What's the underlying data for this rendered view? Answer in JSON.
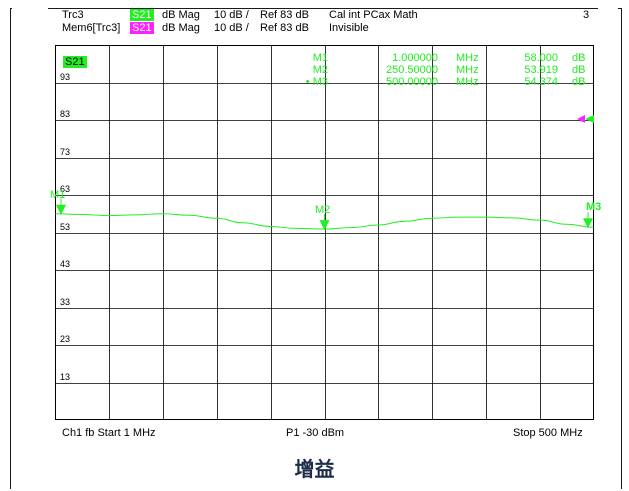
{
  "header": {
    "row1": {
      "trace": "Trc3",
      "param": "S21",
      "format": "dB Mag",
      "scale": "10 dB /",
      "ref": "Ref 83 dB",
      "cal": "Cal int PCax Math",
      "window": "3"
    },
    "row2": {
      "trace": "Mem6[Trc3]",
      "param": "S21",
      "format": "dB Mag",
      "scale": "10 dB /",
      "ref": "Ref 83 dB",
      "status": "Invisible"
    }
  },
  "plot": {
    "param_badge": "S21",
    "markers": [
      {
        "name": "M1",
        "freq": "1.000000",
        "freq_unit": "MHz",
        "value": "58.000",
        "value_unit": "dB",
        "active": false
      },
      {
        "name": "M2",
        "freq": "250.50000",
        "freq_unit": "MHz",
        "value": "53.919",
        "value_unit": "dB",
        "active": false
      },
      {
        "name": "• M3",
        "freq": "500.00000",
        "freq_unit": "MHz",
        "value": "54.374",
        "value_unit": "dB",
        "active": true
      }
    ],
    "marker_labels": {
      "m1": "M1",
      "m2": "M2",
      "m3": "M3"
    }
  },
  "footer": {
    "channel": "Ch1  fb  Start  1 MHz",
    "power": "P1  -30 dBm",
    "stop": "Stop  500 MHz"
  },
  "caption": "增益",
  "colors": {
    "trace": "#22ee22",
    "memory": "#ff22ff",
    "grid": "#000000",
    "caption": "#1c2c4a"
  },
  "chart_data": {
    "type": "line",
    "ylim": [
      3,
      103
    ],
    "xlim": [
      1,
      500
    ],
    "y_ticks": [
      93,
      83,
      73,
      63,
      53,
      43,
      33,
      23,
      13
    ],
    "xlabel": "",
    "ylabel": "",
    "title": "",
    "grid": true,
    "ref_level": 83,
    "series": [
      {
        "x": [
          1,
          25,
          50,
          75,
          100,
          125,
          150,
          175,
          200,
          225,
          250.5,
          275,
          300,
          325,
          350,
          375,
          400,
          425,
          450,
          475,
          500
        ],
        "y": [
          58.0,
          57.8,
          57.5,
          57.7,
          58.0,
          57.6,
          56.8,
          55.6,
          54.6,
          54.1,
          53.9,
          54.3,
          55.0,
          56.0,
          56.8,
          57.1,
          57.1,
          56.9,
          56.3,
          55.2,
          54.4
        ]
      }
    ]
  }
}
